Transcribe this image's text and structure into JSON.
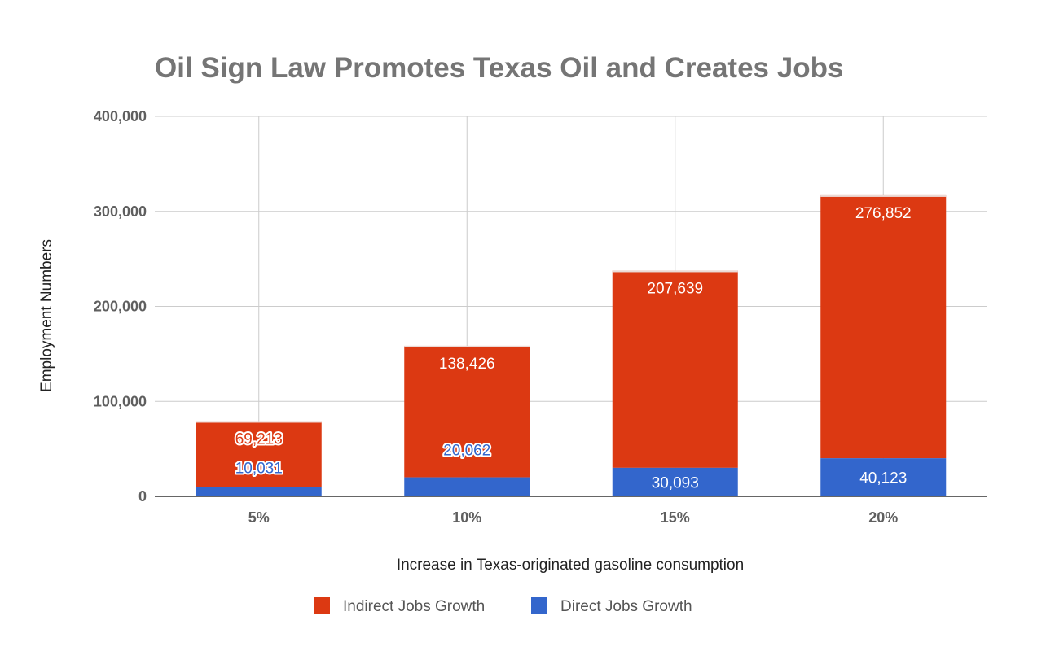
{
  "chart_data": {
    "type": "bar",
    "stacked": true,
    "title": "Oil Sign Law Promotes Texas Oil and Creates Jobs",
    "xlabel": "Increase in Texas-originated gasoline consumption",
    "ylabel": "Employment Numbers",
    "categories": [
      "5%",
      "10%",
      "15%",
      "20%"
    ],
    "ylim": [
      0,
      400000
    ],
    "y_ticks": [
      0,
      100000,
      200000,
      300000,
      400000
    ],
    "y_tick_labels": [
      "0",
      "100,000",
      "200,000",
      "300,000",
      "400,000"
    ],
    "grid": true,
    "legend_position": "bottom",
    "series": [
      {
        "name": "Direct Jobs Growth",
        "color": "#3366cc",
        "values": [
          10031,
          20062,
          30093,
          40123
        ],
        "labels": [
          "10,031",
          "20,062",
          "30,093",
          "40,123"
        ]
      },
      {
        "name": "Indirect Jobs Growth",
        "color": "#dc3912",
        "values": [
          69213,
          138426,
          207639,
          276852
        ],
        "labels": [
          "69,213",
          "138,426",
          "207,639",
          "276,852"
        ]
      }
    ],
    "legend_order": [
      "Indirect Jobs Growth",
      "Direct Jobs Growth"
    ]
  }
}
